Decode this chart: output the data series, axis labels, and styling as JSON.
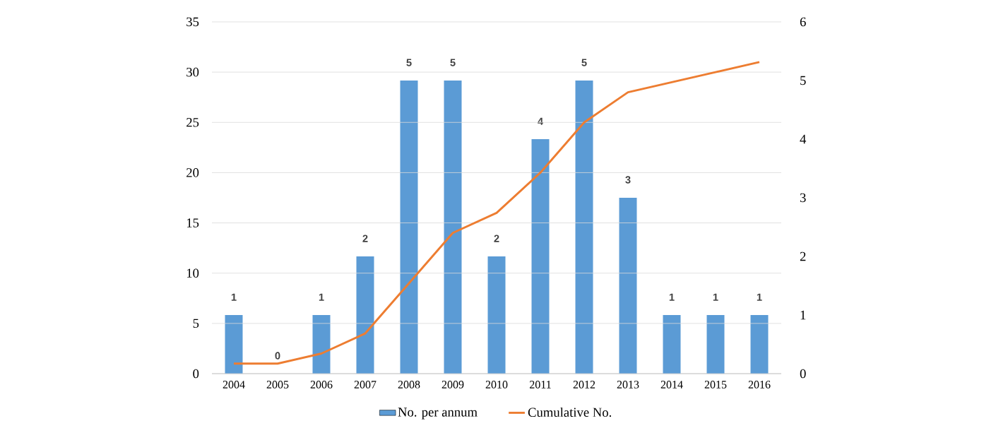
{
  "chart_data": {
    "type": "bar",
    "categories": [
      "2004",
      "2005",
      "2006",
      "2007",
      "2008",
      "2009",
      "2010",
      "2011",
      "2012",
      "2013",
      "2014",
      "2015",
      "2016"
    ],
    "series": [
      {
        "name": "No. per annum",
        "axis": "y2",
        "color": "#5b9bd5",
        "values": [
          1,
          0,
          1,
          2,
          5,
          5,
          2,
          4,
          5,
          3,
          1,
          1,
          1
        ],
        "value_labels": [
          "1",
          "0",
          "1",
          "2",
          "5",
          "5",
          "2",
          "4",
          "5",
          "3",
          "1",
          "1",
          "1"
        ]
      },
      {
        "name": "Cumulative No.",
        "type": "line",
        "color": "#ed7d31",
        "values": [
          1,
          1,
          2,
          4,
          9,
          14,
          16,
          20,
          25,
          28,
          29,
          30,
          31
        ]
      }
    ],
    "ylim": [
      0,
      35
    ],
    "yticks": [
      0,
      5,
      10,
      15,
      20,
      25,
      30,
      35
    ],
    "y2lim": [
      0,
      6
    ],
    "y2ticks": [
      0,
      1,
      2,
      3,
      4,
      5,
      6
    ],
    "grid": "y",
    "legend": "bottom",
    "marker": "none",
    "line_style": "solid"
  }
}
